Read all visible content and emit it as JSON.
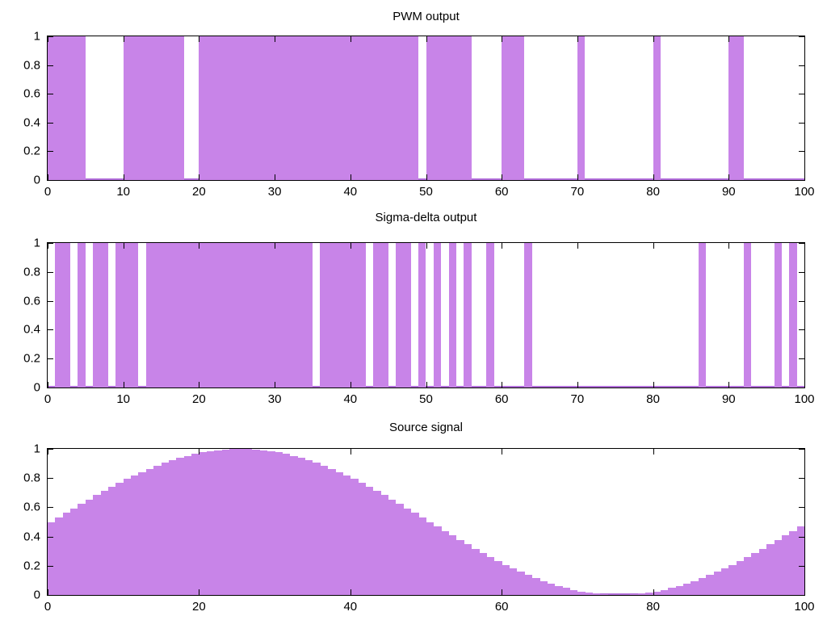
{
  "figure": {
    "background": "#ffffff",
    "text_color": "#000000"
  },
  "colors": {
    "fill": "#c884e8",
    "signal_line": "#b470dc",
    "axis": "#000000"
  },
  "chart_data": [
    {
      "type": "area",
      "subtype": "binary-pulse-train",
      "title": "PWM output",
      "xlabel": "",
      "ylabel": "",
      "xlim": [
        0,
        100
      ],
      "ylim": [
        0,
        1
      ],
      "grid": false,
      "legend": null,
      "xticks": [
        0,
        10,
        20,
        30,
        40,
        50,
        60,
        70,
        80,
        90,
        100
      ],
      "xtick_labels": [
        "0",
        "10",
        "20",
        "30",
        "40",
        "50",
        "60",
        "70",
        "80",
        "90",
        "100"
      ],
      "yticks": [
        0,
        0.2,
        0.4,
        0.6,
        0.8,
        1
      ],
      "ytick_labels": [
        "0",
        "0.2",
        "0.4",
        "0.6",
        "0.8",
        "1"
      ],
      "pulse_level": 1,
      "pulses": [
        [
          0,
          5
        ],
        [
          10,
          18
        ],
        [
          20,
          49
        ],
        [
          50,
          56
        ],
        [
          60,
          63
        ],
        [
          70,
          71
        ],
        [
          80,
          81
        ],
        [
          90,
          92
        ]
      ]
    },
    {
      "type": "area",
      "subtype": "binary-pulse-train",
      "title": "Sigma-delta output",
      "xlabel": "",
      "ylabel": "",
      "xlim": [
        0,
        100
      ],
      "ylim": [
        0,
        1
      ],
      "grid": false,
      "legend": null,
      "xticks": [
        0,
        10,
        20,
        30,
        40,
        50,
        60,
        70,
        80,
        90,
        100
      ],
      "xtick_labels": [
        "0",
        "10",
        "20",
        "30",
        "40",
        "50",
        "60",
        "70",
        "80",
        "90",
        "100"
      ],
      "yticks": [
        0,
        0.2,
        0.4,
        0.6,
        0.8,
        1
      ],
      "ytick_labels": [
        "0",
        "0.2",
        "0.4",
        "0.6",
        "0.8",
        "1"
      ],
      "pulse_level": 1,
      "pulses": [
        [
          1,
          3
        ],
        [
          4,
          5
        ],
        [
          6,
          8
        ],
        [
          9,
          12
        ],
        [
          13,
          35
        ],
        [
          36,
          42
        ],
        [
          43,
          45
        ],
        [
          46,
          48
        ],
        [
          49,
          50
        ],
        [
          51,
          52
        ],
        [
          53,
          54
        ],
        [
          55,
          56
        ],
        [
          58,
          59
        ],
        [
          63,
          64
        ],
        [
          86,
          87
        ],
        [
          92,
          93
        ],
        [
          96,
          97
        ],
        [
          98,
          99
        ]
      ]
    },
    {
      "type": "area",
      "subtype": "step-bars",
      "title": "Source signal",
      "xlabel": "",
      "ylabel": "",
      "xlim": [
        0,
        100
      ],
      "ylim": [
        0,
        1
      ],
      "grid": false,
      "legend": null,
      "xticks": [
        0,
        20,
        40,
        60,
        80,
        100
      ],
      "xtick_labels": [
        "0",
        "20",
        "40",
        "60",
        "80",
        "100"
      ],
      "yticks": [
        0,
        0.2,
        0.4,
        0.6,
        0.8,
        1
      ],
      "ytick_labels": [
        "0",
        "0.2",
        "0.4",
        "0.6",
        "0.8",
        "1"
      ],
      "bar_width": 1,
      "x_start": 0,
      "values": [
        0.5,
        0.5314,
        0.5627,
        0.5937,
        0.6243,
        0.6545,
        0.6841,
        0.7129,
        0.7409,
        0.7679,
        0.7939,
        0.8187,
        0.8423,
        0.8645,
        0.8853,
        0.9045,
        0.9222,
        0.9382,
        0.9524,
        0.9649,
        0.9755,
        0.9843,
        0.9911,
        0.996,
        0.999,
        1.0,
        0.999,
        0.996,
        0.9911,
        0.9843,
        0.9755,
        0.9649,
        0.9524,
        0.9382,
        0.9222,
        0.9045,
        0.8853,
        0.8645,
        0.8423,
        0.8187,
        0.7939,
        0.7679,
        0.7409,
        0.7129,
        0.6841,
        0.6545,
        0.6243,
        0.5937,
        0.5627,
        0.5314,
        0.5,
        0.4686,
        0.4373,
        0.4063,
        0.3757,
        0.3455,
        0.3159,
        0.2871,
        0.2591,
        0.2321,
        0.2061,
        0.1813,
        0.1577,
        0.1355,
        0.1147,
        0.0955,
        0.0778,
        0.0618,
        0.0476,
        0.0351,
        0.0245,
        0.0157,
        0.0089,
        0.004,
        0.001,
        0.0,
        0.001,
        0.004,
        0.0089,
        0.0157,
        0.0245,
        0.0351,
        0.0476,
        0.0618,
        0.0778,
        0.0955,
        0.1147,
        0.1355,
        0.1577,
        0.1813,
        0.2061,
        0.2321,
        0.2591,
        0.2871,
        0.3159,
        0.3455,
        0.3757,
        0.4063,
        0.4373,
        0.4686
      ]
    }
  ]
}
